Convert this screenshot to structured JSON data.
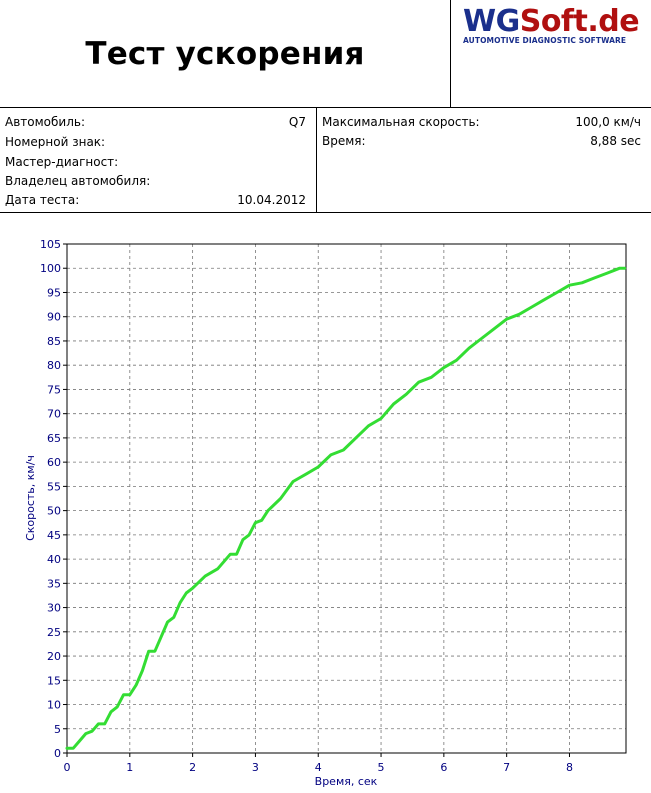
{
  "header": {
    "title": "Тест ускорения",
    "logo_wg": "WG",
    "logo_soft": "Soft.de",
    "logo_subtitle": "AUTOMOTIVE DIAGNOSTIC SOFTWARE"
  },
  "info": {
    "left": [
      {
        "label": "Автомобиль:",
        "value": "Q7"
      },
      {
        "label": "Номерной  знак:",
        "value": ""
      },
      {
        "label": "Мастер-диагност:",
        "value": ""
      },
      {
        "label": "Владелец  автомобиля:",
        "value": ""
      },
      {
        "label": "Дата теста:",
        "value": "10.04.2012"
      }
    ],
    "right": [
      {
        "label": "Максимальная  скорость:",
        "value": "100,0 км/ч"
      },
      {
        "label": "Время:",
        "value": "8,88 sec"
      }
    ]
  },
  "chart_data": {
    "type": "line",
    "xlabel": "Время, сек",
    "ylabel": "Скорость, км/ч",
    "xlim": [
      0,
      8.9
    ],
    "ylim": [
      0,
      105
    ],
    "xticks": [
      0,
      1,
      2,
      3,
      4,
      5,
      6,
      7,
      8
    ],
    "yticks": [
      0,
      5,
      10,
      15,
      20,
      25,
      30,
      35,
      40,
      45,
      50,
      55,
      60,
      65,
      70,
      75,
      80,
      85,
      90,
      95,
      100,
      105
    ],
    "grid": true,
    "line_color": "#33dd33",
    "axis_label_color": "#000080",
    "series": [
      {
        "x": [
          0.0,
          0.1,
          0.2,
          0.3,
          0.4,
          0.5,
          0.6,
          0.7,
          0.8,
          0.9,
          1.0,
          1.1,
          1.2,
          1.3,
          1.4,
          1.5,
          1.6,
          1.7,
          1.8,
          1.9,
          2.0,
          2.2,
          2.4,
          2.6,
          2.7,
          2.8,
          2.9,
          3.0,
          3.1,
          3.2,
          3.4,
          3.6,
          3.8,
          4.0,
          4.2,
          4.4,
          4.6,
          4.8,
          5.0,
          5.2,
          5.4,
          5.6,
          5.8,
          6.0,
          6.2,
          6.4,
          6.6,
          6.8,
          7.0,
          7.2,
          7.4,
          7.6,
          7.8,
          8.0,
          8.2,
          8.4,
          8.6,
          8.7,
          8.8,
          8.88
        ],
        "values": [
          1,
          1,
          2.5,
          4,
          4.5,
          6,
          6,
          8.5,
          9.5,
          12,
          12,
          14,
          17,
          21,
          21,
          24,
          27,
          28,
          31,
          33,
          34,
          36.5,
          38,
          41,
          41,
          44,
          45,
          47.5,
          48,
          50,
          52.5,
          56,
          57.5,
          59,
          61.5,
          62.5,
          65,
          67.5,
          69,
          72,
          74,
          76.5,
          77.5,
          79.5,
          81,
          83.5,
          85.5,
          87.5,
          89.5,
          90.5,
          92,
          93.5,
          95,
          96.5,
          97,
          98,
          99,
          99.5,
          100,
          100
        ]
      }
    ]
  }
}
